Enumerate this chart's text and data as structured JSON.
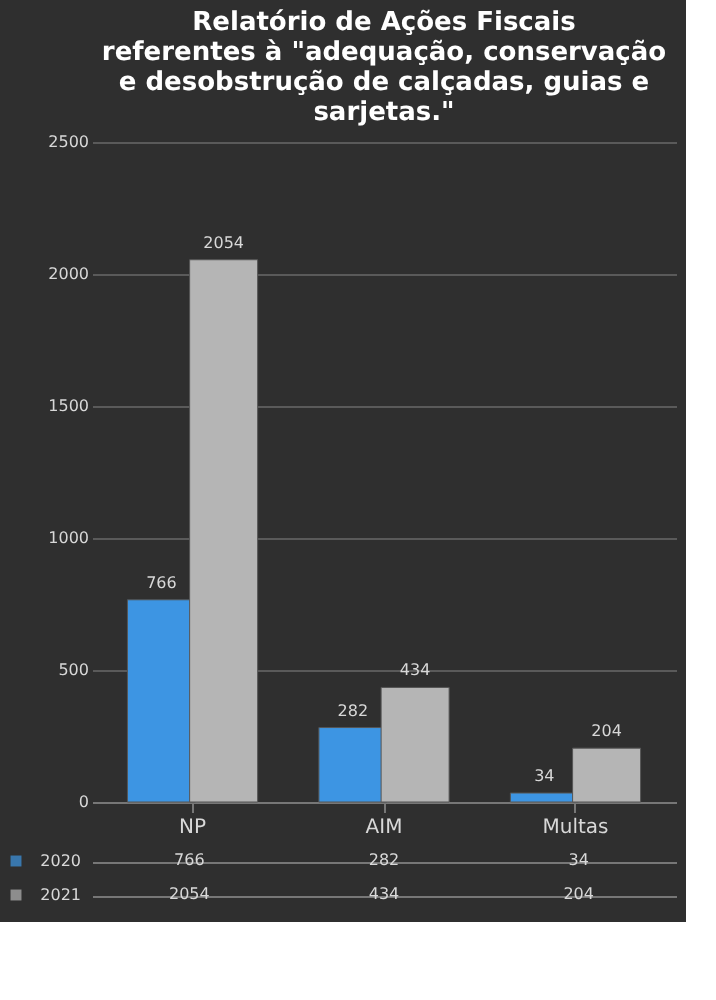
{
  "chart_data": {
    "type": "bar",
    "title": "Relatório de Ações Fiscais referentes à \"adequação, conservação e desobstrução de calçadas, guias e sarjetas.\"",
    "categories": [
      "NP",
      "AIM",
      "Multas"
    ],
    "series": [
      {
        "name": "2020",
        "color": "#3d95e3",
        "values": [
          766,
          282,
          34
        ],
        "value_labels": [
          "766",
          "282",
          "34"
        ]
      },
      {
        "name": "2021",
        "color": "#b5b5b5",
        "values": [
          2054,
          434,
          204
        ],
        "value_labels": [
          "2054",
          "434",
          "204"
        ]
      }
    ],
    "ylim": [
      0,
      2500
    ],
    "yticks": [
      0,
      500,
      1000,
      1500,
      2000,
      2500
    ],
    "grid": "y",
    "legend": "bottom"
  }
}
